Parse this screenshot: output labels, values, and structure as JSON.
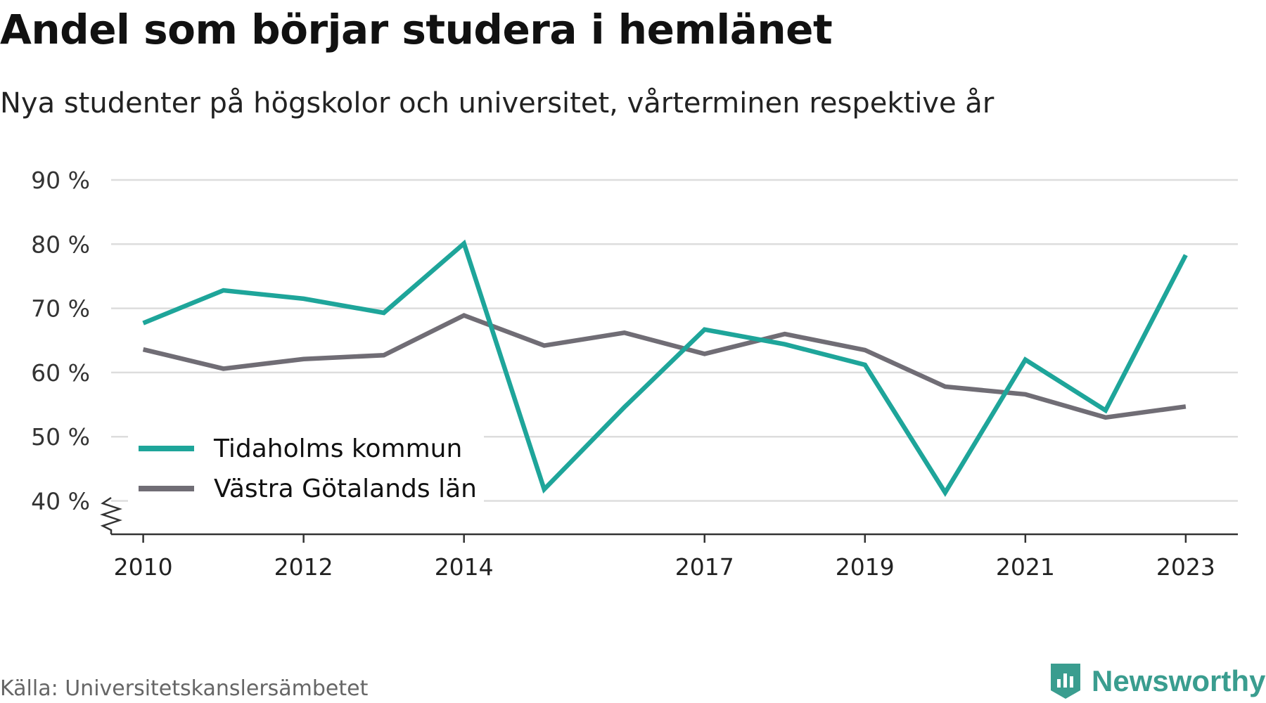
{
  "title": "Andel som börjar studera i hemlänet",
  "subtitle": "Nya studenter på högskolor och universitet, vårterminen respektive år",
  "source": "Källa: Universitetskanslersämbetet",
  "brand": "Newsworthy",
  "colors": {
    "series1": "#1ea59a",
    "series2": "#706d75",
    "grid": "#dddddd",
    "axis": "#333333",
    "brand": "#3a9d8f"
  },
  "chart_data": {
    "type": "line",
    "title": "Andel som börjar studera i hemlänet",
    "subtitle": "Nya studenter på högskolor och universitet, vårterminen respektive år",
    "x": [
      2010,
      2011,
      2012,
      2013,
      2014,
      2015,
      2016,
      2017,
      2018,
      2019,
      2020,
      2021,
      2022,
      2023
    ],
    "x_ticks": [
      2010,
      2012,
      2014,
      2017,
      2019,
      2021,
      2023
    ],
    "x_tick_labels": [
      "2010",
      "2012",
      "2014",
      "2017",
      "2019",
      "2021",
      "2023"
    ],
    "y_ticks": [
      40,
      50,
      60,
      70,
      80,
      90
    ],
    "y_tick_labels": [
      "40 %",
      "50 %",
      "60 %",
      "70 %",
      "80 %",
      "90 %"
    ],
    "ylim": [
      35,
      90
    ],
    "y_axis_break": true,
    "grid": true,
    "legend_position": "bottom-left",
    "series": [
      {
        "name": "Tidaholms kommun",
        "values": [
          67.7,
          72.8,
          71.5,
          69.3,
          80.1,
          41.8,
          54.6,
          66.7,
          64.4,
          61.2,
          41.3,
          62.0,
          54.1,
          78.3
        ]
      },
      {
        "name": "Västra Götalands län",
        "values": [
          63.6,
          60.6,
          62.1,
          62.7,
          68.9,
          64.2,
          66.2,
          62.9,
          66.0,
          63.5,
          57.8,
          56.6,
          53.0,
          54.7
        ]
      }
    ]
  }
}
